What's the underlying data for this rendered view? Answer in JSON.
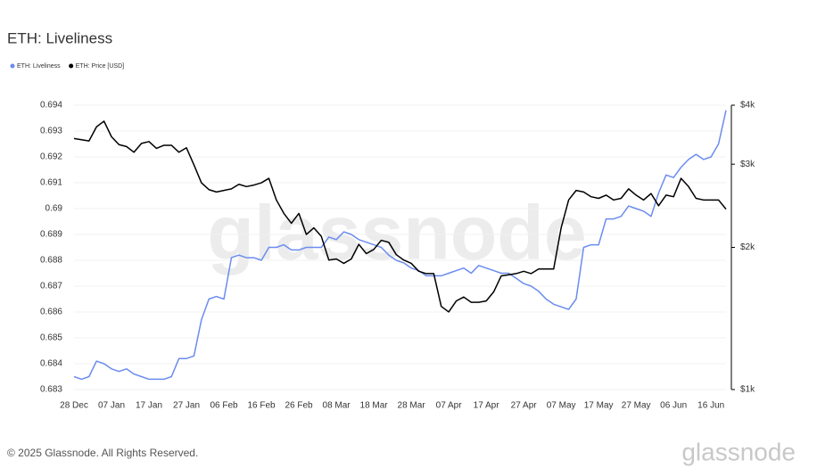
{
  "chart_data": {
    "type": "line",
    "title": "ETH: Liveliness",
    "categories": [
      "28 Dec",
      null,
      null,
      null,
      null,
      "07 Jan",
      null,
      null,
      null,
      null,
      "17 Jan",
      null,
      null,
      null,
      null,
      "27 Jan",
      null,
      null,
      null,
      null,
      "06 Feb",
      null,
      null,
      null,
      null,
      "16 Feb",
      null,
      null,
      null,
      null,
      "26 Feb",
      null,
      null,
      null,
      null,
      "08 Mar",
      null,
      null,
      null,
      null,
      "18 Mar",
      null,
      null,
      null,
      null,
      "28 Mar",
      null,
      null,
      null,
      null,
      "07 Apr",
      null,
      null,
      null,
      null,
      "17 Apr",
      null,
      null,
      null,
      null,
      "27 Apr",
      null,
      null,
      null,
      null,
      "07 May",
      null,
      null,
      null,
      null,
      "17 May",
      null,
      null,
      null,
      null,
      "27 May",
      null,
      null,
      null,
      null,
      "06 Jun",
      null,
      null,
      null,
      null,
      "16 Jun",
      null,
      null
    ],
    "series": [
      {
        "name": "ETH: Liveliness",
        "color": "#6b8cef",
        "values": [
          0.6835,
          0.6834,
          0.6835,
          0.6841,
          0.684,
          0.6838,
          0.6837,
          0.6838,
          0.6836,
          0.6835,
          0.6834,
          0.6834,
          0.6834,
          0.6835,
          0.6842,
          0.6842,
          0.6843,
          0.6857,
          0.6865,
          0.6866,
          0.6865,
          0.6881,
          0.6882,
          0.6881,
          0.6881,
          0.688,
          0.6885,
          0.6885,
          0.6886,
          0.6884,
          0.6884,
          0.6885,
          0.6885,
          0.6885,
          0.6889,
          0.6888,
          0.6891,
          0.689,
          0.6888,
          0.6887,
          0.6886,
          0.6885,
          0.6882,
          0.688,
          0.6879,
          0.6877,
          0.6876,
          0.6874,
          0.6874,
          0.6874,
          0.6875,
          0.6876,
          0.6877,
          0.6875,
          0.6878,
          0.6877,
          0.6876,
          0.6875,
          0.6875,
          0.6873,
          0.6871,
          0.687,
          0.6868,
          0.6865,
          0.6863,
          0.6862,
          0.6861,
          0.6865,
          0.6885,
          0.6886,
          0.6886,
          0.6896,
          0.6896,
          0.6897,
          0.6901,
          0.69,
          0.6899,
          0.6897,
          0.6906,
          0.6913,
          0.6912,
          0.6916,
          0.6919,
          0.6921,
          0.6919,
          0.692,
          0.6925,
          0.6938
        ]
      },
      {
        "name": "ETH: Price [USD]",
        "color": "#000000",
        "axis": "y2",
        "values": [
          3400,
          3380,
          3360,
          3600,
          3700,
          3430,
          3300,
          3270,
          3180,
          3320,
          3350,
          3240,
          3290,
          3290,
          3180,
          3250,
          2990,
          2740,
          2650,
          2620,
          2640,
          2660,
          2720,
          2690,
          2710,
          2740,
          2800,
          2520,
          2360,
          2250,
          2360,
          2130,
          2200,
          2110,
          1880,
          1890,
          1850,
          1890,
          2030,
          1940,
          1980,
          2070,
          2050,
          1930,
          1880,
          1850,
          1780,
          1760,
          1760,
          1500,
          1460,
          1540,
          1570,
          1530,
          1530,
          1540,
          1610,
          1740,
          1750,
          1760,
          1780,
          1760,
          1800,
          1800,
          1800,
          2200,
          2520,
          2640,
          2620,
          2560,
          2540,
          2580,
          2520,
          2540,
          2660,
          2580,
          2520,
          2600,
          2450,
          2580,
          2560,
          2800,
          2690,
          2540,
          2520,
          2520,
          2520,
          2410
        ]
      }
    ],
    "ylim": [
      0.683,
      0.694
    ],
    "yticks": [
      0.683,
      0.684,
      0.685,
      0.686,
      0.687,
      0.688,
      0.689,
      0.69,
      0.691,
      0.692,
      0.693,
      0.694
    ],
    "y2lim": [
      1000,
      4000
    ],
    "y2log": true,
    "y2ticks": [
      {
        "value": 1000,
        "label": "$1k"
      },
      {
        "value": 2000,
        "label": "$2k"
      },
      {
        "value": 3000,
        "label": "$3k"
      },
      {
        "value": 4000,
        "label": "$4k"
      }
    ],
    "grid": true,
    "legend": "top-left"
  },
  "watermark": "glassnode",
  "footer": "© 2025 Glassnode. All Rights Reserved.",
  "logo": "glassnode"
}
